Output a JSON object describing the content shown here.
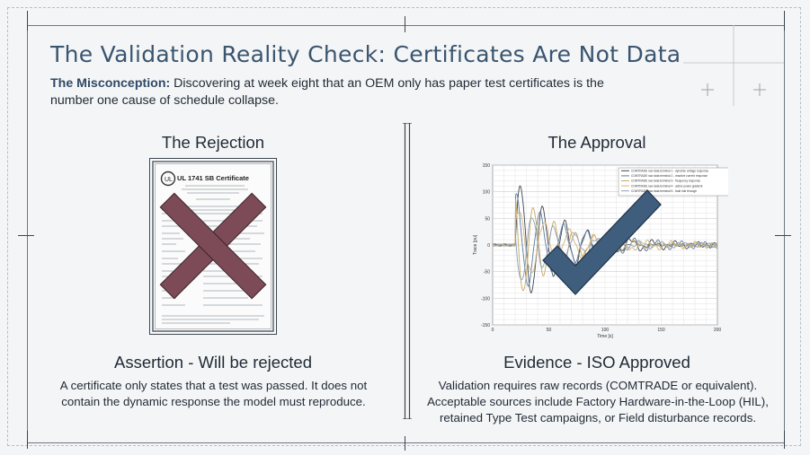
{
  "title": "The Validation Reality Check: Certificates Are Not Data",
  "misconception": {
    "label": "The Misconception:",
    "text": " Discovering at week eight that an OEM only has paper test certificates is the number one cause of schedule collapse."
  },
  "left": {
    "heading": "The Rejection",
    "certificate_title": "UL 1741 SB Certificate",
    "subheading": "Assertion - Will be rejected",
    "body": "A certificate only states that a test was passed. It does not contain the dynamic response the model must reproduce."
  },
  "right": {
    "heading": "The Approval",
    "subheading": "Evidence - ISO Approved",
    "body_lines": [
      "Validation requires raw records (COMTRADE or equivalent).",
      "Acceptable sources include Factory Hardware-in-the-Loop (HIL),",
      "retained Type Test campaigns, or Field disturbance records."
    ]
  },
  "colors": {
    "title": "#3a5570",
    "cross": "#7d4a57",
    "check": "#3f5e7e",
    "frame": "#6d7884"
  },
  "chart_data": {
    "type": "line",
    "xlabel": "Time [s]",
    "ylabel": "Trace [pu]",
    "xlim": [
      0,
      200
    ],
    "ylim": [
      -150,
      150
    ],
    "x_ticks": [
      0,
      50,
      100,
      150,
      200
    ],
    "y_ticks": [
      -150,
      -100,
      -50,
      0,
      50,
      100,
      150
    ],
    "grid": true,
    "legend_placement": "top-right",
    "series": [
      {
        "name": "COMTRADE raw data terminal 1 - dynamic voltage response",
        "color": "#3b4653",
        "freq": 0.32,
        "damp": 0.024,
        "amp": 125,
        "phase": 0.0
      },
      {
        "name": "COMTRADE raw data terminal 2 - reactive current response",
        "color": "#5b7aa0",
        "freq": 0.3,
        "damp": 0.022,
        "amp": 95,
        "phase": 1.2
      },
      {
        "name": "COMTRADE raw data terminal 3 - frequency response",
        "color": "#c9a860",
        "freq": 0.35,
        "damp": 0.028,
        "amp": 110,
        "phase": 2.1
      },
      {
        "name": "COMTRADE raw data terminal 4 - active power gradient",
        "color": "#d4b47a",
        "freq": 0.28,
        "damp": 0.02,
        "amp": 70,
        "phase": 0.6
      },
      {
        "name": "COMTRADE raw data terminal 5 - fault ride through",
        "color": "#8aa0b8",
        "freq": 0.33,
        "damp": 0.026,
        "amp": 80,
        "phase": 2.8
      }
    ],
    "event_start": 20
  }
}
